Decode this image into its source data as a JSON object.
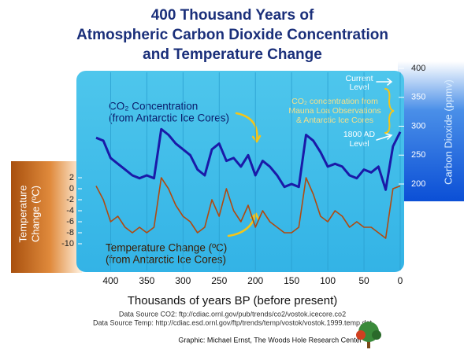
{
  "chart_data": {
    "type": "line",
    "title": [
      "400 Thousand Years of",
      "Atmospheric Carbon Dioxide Concentration",
      "and Temperature Change"
    ],
    "x_label": "Thousands of years BP (before present)",
    "y_label": [
      "Temperature",
      "Change (ºC)"
    ],
    "y2_label": "Carbon Dioxide (ppmv)",
    "xlim": [
      420,
      0
    ],
    "xticks": [
      400,
      350,
      300,
      250,
      200,
      150,
      100,
      50,
      0
    ],
    "ylim": [
      -10,
      2
    ],
    "yticks": [
      2,
      0,
      -2,
      -4,
      -6,
      -8,
      -10
    ],
    "y2lim": [
      200,
      400
    ],
    "y2ticks": [
      200,
      250,
      300,
      350,
      400
    ],
    "grid": true,
    "x": [
      420,
      410,
      400,
      390,
      380,
      370,
      360,
      350,
      340,
      330,
      320,
      310,
      300,
      290,
      280,
      270,
      260,
      250,
      240,
      230,
      220,
      210,
      200,
      190,
      180,
      170,
      160,
      150,
      140,
      130,
      120,
      110,
      100,
      90,
      80,
      70,
      60,
      50,
      40,
      30,
      20,
      10,
      0
    ],
    "series": [
      {
        "name": "CO₂ Concentration",
        "axis": "y2",
        "color": "#1a1aa8",
        "values": [
          280,
          275,
          245,
          235,
          225,
          215,
          210,
          215,
          210,
          295,
          285,
          270,
          260,
          250,
          225,
          215,
          260,
          270,
          240,
          245,
          230,
          250,
          215,
          240,
          230,
          215,
          195,
          200,
          195,
          285,
          275,
          255,
          230,
          235,
          230,
          215,
          210,
          225,
          220,
          230,
          190,
          265,
          290
        ]
      },
      {
        "name": "Temperature Change (ºC)",
        "color": "#b04a10",
        "values": [
          0.5,
          -2,
          -6,
          -5,
          -7,
          -8,
          -7,
          -8,
          -7,
          2,
          0,
          -3,
          -5,
          -6,
          -8,
          -7,
          -2,
          -5,
          0,
          -4,
          -6,
          -3,
          -7,
          -4,
          -6,
          -7,
          -8,
          -8,
          -7,
          2,
          -1,
          -5,
          -6,
          -4,
          -5,
          -7,
          -6,
          -7,
          -7,
          -8,
          -9,
          0,
          0.5
        ]
      }
    ],
    "annotations": {
      "co2": [
        "CO₂ Concentration",
        "(from Antarctic Ice Cores)"
      ],
      "temperature": [
        "Temperature Change (ºC)",
        "(from Antarctic Ice Cores)"
      ],
      "current": [
        "Current",
        "Level"
      ],
      "mauna_loa": [
        "CO₂ concentration from",
        "Mauna Loa Observations",
        "& Antarctic Ice Cores"
      ],
      "preindustrial": [
        "1800 AD",
        "Level"
      ]
    },
    "sources": [
      "Data Source CO2: ftp://cdiac.ornl.gov/pub/trends/co2/vostok.icecore.co2",
      "Data Source Temp: http://cdiac.esd.ornl.gov/ftp/trends/temp/vostok/vostok.1999.temp.dat"
    ],
    "credit": "Graphic: Michael Ernst, The Woods Hole Research Center"
  }
}
